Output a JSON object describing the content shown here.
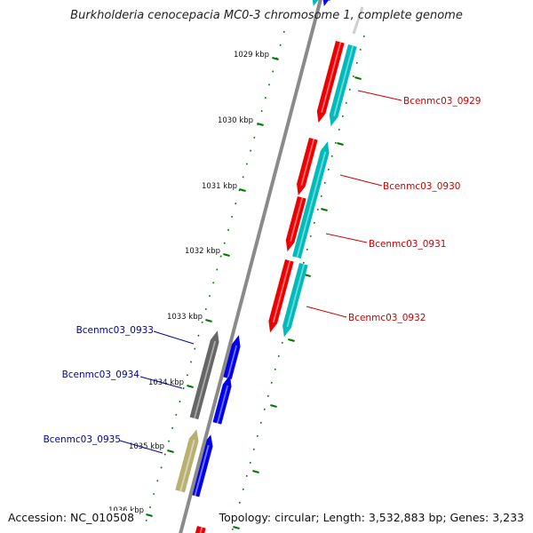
{
  "title": "Burkholderia cenocepacia MC0-3 chromosome 1, complete genome",
  "footer": {
    "accession": "Accession: NC_010508",
    "topology": "Topology: circular; Length: 3,532,883 bp; Genes: 3,233"
  },
  "colors": {
    "forward_label": "#cc0000",
    "reverse_label": "#000099",
    "backbone": "#8a8a8a",
    "tick": "#007700",
    "cds_red": "#ee0000",
    "cds_cyan": "#00bbbb",
    "cds_blue": "#0000ee",
    "cds_gray": "#666666",
    "cds_olive": "#b8b070"
  },
  "scale_ticks": [
    "1029 kbp",
    "1030 kbp",
    "1031 kbp",
    "1032 kbp",
    "1033 kbp",
    "1034 kbp",
    "1035 kbp",
    "1036 kbp"
  ],
  "genes": [
    {
      "name": "Bcenmc03_0929",
      "strand": "forward"
    },
    {
      "name": "Bcenmc03_0930",
      "strand": "forward"
    },
    {
      "name": "Bcenmc03_0931",
      "strand": "forward"
    },
    {
      "name": "Bcenmc03_0932",
      "strand": "forward"
    },
    {
      "name": "Bcenmc03_0933",
      "strand": "reverse"
    },
    {
      "name": "Bcenmc03_0934",
      "strand": "reverse"
    },
    {
      "name": "Bcenmc03_0935",
      "strand": "reverse"
    }
  ]
}
